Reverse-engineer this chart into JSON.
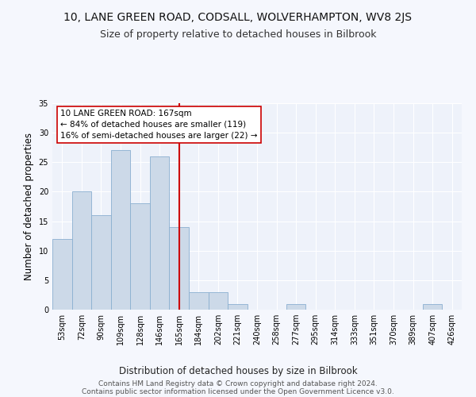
{
  "title1": "10, LANE GREEN ROAD, CODSALL, WOLVERHAMPTON, WV8 2JS",
  "title2": "Size of property relative to detached houses in Bilbrook",
  "xlabel": "Distribution of detached houses by size in Bilbrook",
  "ylabel": "Number of detached properties",
  "bin_labels": [
    "53sqm",
    "72sqm",
    "90sqm",
    "109sqm",
    "128sqm",
    "146sqm",
    "165sqm",
    "184sqm",
    "202sqm",
    "221sqm",
    "240sqm",
    "258sqm",
    "277sqm",
    "295sqm",
    "314sqm",
    "333sqm",
    "351sqm",
    "370sqm",
    "389sqm",
    "407sqm",
    "426sqm"
  ],
  "bin_values": [
    12,
    20,
    16,
    27,
    18,
    26,
    14,
    3,
    3,
    1,
    0,
    0,
    1,
    0,
    0,
    0,
    0,
    0,
    0,
    1,
    0
  ],
  "bar_color": "#ccd9e8",
  "bar_edge_color": "#8aafd0",
  "subject_bin_index": 6,
  "vline_color": "#cc0000",
  "annotation_text": "10 LANE GREEN ROAD: 167sqm\n← 84% of detached houses are smaller (119)\n16% of semi-detached houses are larger (22) →",
  "annotation_box_color": "#ffffff",
  "annotation_box_edge_color": "#cc0000",
  "ylim": [
    0,
    35
  ],
  "yticks": [
    0,
    5,
    10,
    15,
    20,
    25,
    30,
    35
  ],
  "footer1": "Contains HM Land Registry data © Crown copyright and database right 2024.",
  "footer2": "Contains public sector information licensed under the Open Government Licence v3.0.",
  "bg_color": "#eef2fa",
  "grid_color": "#ffffff",
  "fig_bg_color": "#f5f7fd",
  "title1_fontsize": 10,
  "title2_fontsize": 9,
  "xlabel_fontsize": 8.5,
  "ylabel_fontsize": 8.5,
  "tick_fontsize": 7,
  "annotation_fontsize": 7.5,
  "footer_fontsize": 6.5
}
